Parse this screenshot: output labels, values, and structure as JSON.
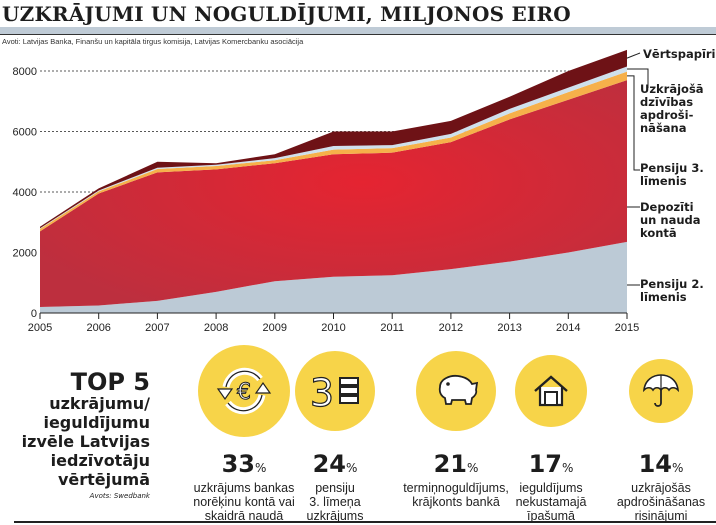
{
  "header": {
    "title": "UZKRĀJUMI UN NOGULDĪJUMI, MILJONOS EIRO",
    "source": "Avoti: Latvijas Banka, Finanšu un kapitāla tirgus komisija, Latvijas Komercbanku asociācija"
  },
  "chart_data": {
    "type": "area",
    "stacked": true,
    "title": "UZKRĀJUMI UN NOGULDĪJUMI, MILJONOS EIRO",
    "xlabel": "",
    "ylabel": "",
    "x": [
      "2005",
      "2006",
      "2007",
      "2008",
      "2009",
      "2010",
      "2011",
      "2012",
      "2013",
      "2014",
      "2015"
    ],
    "yticks": [
      "0",
      "2000",
      "4000",
      "6000",
      "8000"
    ],
    "ylim": [
      0,
      9000
    ],
    "grid": "dashed horizontal at 4000, 6000, 8000",
    "legend": "right, labels with leader lines",
    "series": [
      {
        "name": "Pensiju 2. līmenis",
        "color": "#bccad6",
        "values": [
          200,
          250,
          400,
          700,
          1050,
          1200,
          1250,
          1450,
          1700,
          2000,
          2350
        ]
      },
      {
        "name": "Depozīti un nauda kontā",
        "color": "#d8283a",
        "values": [
          2500,
          3700,
          4250,
          4050,
          3900,
          4050,
          4050,
          4200,
          4700,
          5050,
          5350
        ]
      },
      {
        "name": "Pensiju 3. līmenis",
        "color": "#f6b04a",
        "values": [
          80,
          70,
          110,
          110,
          100,
          150,
          150,
          150,
          200,
          250,
          280
        ]
      },
      {
        "name": "Uzkrājošā dzīvības apdrošināšana",
        "color": "#cfe0ec",
        "values": [
          20,
          30,
          40,
          40,
          70,
          120,
          100,
          120,
          150,
          150,
          170
        ]
      },
      {
        "name": "Vērtspapīri",
        "color": "#6e1216",
        "values": [
          50,
          70,
          200,
          50,
          130,
          480,
          450,
          430,
          400,
          550,
          550
        ]
      }
    ]
  },
  "legend_labels": [
    "Vērtspapīri",
    "Uzkrājošā dzīvības apdroši-nāšana",
    "Pensiju 3. līmenis",
    "Depozīti un nauda kontā",
    "Pensiju 2. līmenis"
  ],
  "top5": {
    "heading": "TOP 5",
    "line1": "uzkrājumu/",
    "line2": "ieguldījumu",
    "line3": "izvēle Latvijas",
    "line4": "iedzīvotāju",
    "line5": "vērtējumā",
    "source": "Avots: Swedbank",
    "accent_color": "#f7d449",
    "items": [
      {
        "icon": "euro-exchange-icon",
        "value": "33",
        "unit": "%",
        "desc1": "uzkrājums bankas",
        "desc2": "norēķinu kontā vai",
        "desc3": "skaidrā naudā"
      },
      {
        "icon": "pension-pillar-3-icon",
        "value": "24",
        "unit": "%",
        "desc1": "pensiju",
        "desc2": "3. līmeņa",
        "desc3": "uzkrājums"
      },
      {
        "icon": "piggy-bank-icon",
        "value": "21",
        "unit": "%",
        "desc1": "termiņnoguldījums,",
        "desc2": "krājkonts bankā",
        "desc3": ""
      },
      {
        "icon": "house-icon",
        "value": "17",
        "unit": "%",
        "desc1": "ieguldījums",
        "desc2": "nekustamajā",
        "desc3": "īpašumā"
      },
      {
        "icon": "umbrella-icon",
        "value": "14",
        "unit": "%",
        "desc1": "uzkrājošās",
        "desc2": "apdrošināšanas",
        "desc3": "risinājumi"
      }
    ]
  }
}
